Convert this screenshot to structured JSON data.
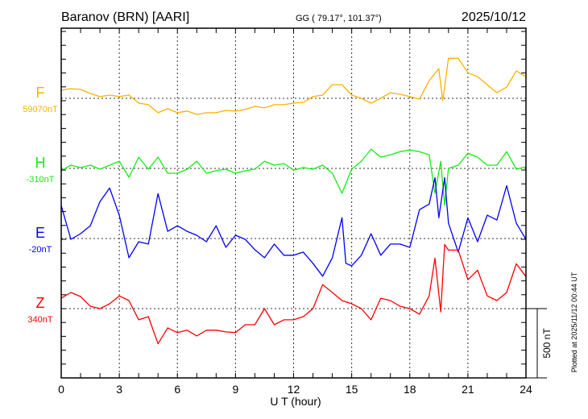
{
  "header": {
    "station": "Baranov (BRN)  [AARI]",
    "coords": "GG ( 79.17°, 101.37°)",
    "date": "2025/10/12"
  },
  "footer": {
    "plotted": "Plotted at 2025/11/12 00:44 UT"
  },
  "scale_bar": {
    "label": "500 nT",
    "value_nT": 500
  },
  "chart_data": {
    "type": "line",
    "title": "Baranov (BRN) [AARI] 2025/10/12",
    "xlabel": "U T (hour)",
    "xlim": [
      0,
      24
    ],
    "xticks": [
      "0",
      "3",
      "6",
      "9",
      "12",
      "15",
      "18",
      "21",
      "24"
    ],
    "xtick_values": [
      0,
      3,
      6,
      9,
      12,
      15,
      18,
      21,
      24
    ],
    "grid": "dotted vertical lines every 3 hours; dotted baseline per component",
    "units_per_tick_nT": 100,
    "series": [
      {
        "name": "F",
        "baseline_label": "59070nT",
        "color": "#ffb000",
        "x": [
          0,
          0.5,
          1,
          1.5,
          2,
          2.5,
          3,
          3.5,
          4,
          4.5,
          5,
          5.5,
          6,
          6.5,
          7,
          7.5,
          8,
          8.5,
          9,
          9.5,
          10,
          10.5,
          11,
          11.5,
          12,
          12.5,
          13,
          13.5,
          14,
          14.5,
          15,
          15.5,
          16,
          16.5,
          17,
          17.5,
          18,
          18.5,
          19,
          19.5,
          19.7,
          20,
          20.5,
          21,
          21.5,
          22,
          22.5,
          23,
          23.5,
          24
        ],
        "values": [
          58,
          70,
          64,
          35,
          12,
          23,
          12,
          23,
          -35,
          -46,
          -104,
          -75,
          -104,
          -92,
          -116,
          -104,
          -104,
          -87,
          -92,
          -81,
          -58,
          -69,
          -46,
          -46,
          -35,
          -29,
          12,
          23,
          98,
          98,
          23,
          0,
          -35,
          0,
          40,
          29,
          12,
          -6,
          127,
          214,
          -17,
          289,
          289,
          185,
          156,
          98,
          40,
          81,
          197,
          156
        ]
      },
      {
        "name": "H",
        "baseline_label": "-310nT",
        "color": "#11ee11",
        "x": [
          0,
          0.5,
          1,
          1.5,
          2,
          2.5,
          3,
          3.5,
          4,
          4.5,
          5,
          5.5,
          6,
          6.5,
          7,
          7.5,
          8,
          8.5,
          9,
          9.5,
          10,
          10.5,
          11,
          11.5,
          12,
          12.5,
          13,
          13.5,
          14,
          14.5,
          15,
          15.5,
          16,
          16.5,
          17,
          17.5,
          18,
          18.5,
          19,
          19.3,
          19.6,
          19.8,
          20,
          20.5,
          21,
          21.5,
          22,
          22.5,
          23,
          23.5,
          24
        ],
        "values": [
          -17,
          23,
          6,
          23,
          -6,
          23,
          52,
          -64,
          81,
          -6,
          81,
          -35,
          -35,
          -6,
          52,
          -35,
          -17,
          -6,
          -35,
          -17,
          -6,
          52,
          23,
          35,
          -12,
          6,
          -6,
          23,
          -35,
          -179,
          -6,
          52,
          139,
          81,
          98,
          121,
          133,
          121,
          98,
          -179,
          52,
          -266,
          0,
          23,
          110,
          81,
          23,
          23,
          121,
          -6,
          12
        ]
      },
      {
        "name": "E",
        "baseline_label": "-20nT",
        "color": "#0000ff",
        "x": [
          0,
          0.5,
          1,
          1.5,
          2,
          2.5,
          3,
          3.5,
          4,
          4.5,
          5,
          5.5,
          6,
          6.5,
          7,
          7.5,
          8,
          8.5,
          9,
          9.5,
          10,
          10.5,
          11,
          11.5,
          12,
          12.5,
          13,
          13.5,
          14,
          14.5,
          14.7,
          15,
          15.5,
          16,
          16.5,
          17,
          17.5,
          18,
          18.5,
          19,
          19.3,
          19.5,
          19.8,
          20,
          20.5,
          21,
          21.5,
          22,
          22.5,
          23,
          23.5,
          24
        ],
        "values": [
          237,
          -6,
          35,
          92,
          266,
          364,
          168,
          -139,
          -23,
          -40,
          324,
          52,
          92,
          52,
          23,
          -23,
          92,
          -64,
          23,
          -6,
          -81,
          -139,
          -40,
          -121,
          -121,
          -98,
          -179,
          -272,
          -139,
          150,
          -179,
          -197,
          -121,
          35,
          -121,
          -40,
          -40,
          -64,
          208,
          248,
          439,
          150,
          439,
          110,
          -98,
          150,
          -23,
          168,
          133,
          381,
          110,
          -6
        ]
      },
      {
        "name": "Z",
        "baseline_label": "340nT",
        "color": "#ff0000",
        "x": [
          0,
          0.5,
          1,
          1.5,
          2,
          2.5,
          3,
          3.5,
          4,
          4.5,
          5,
          5.5,
          6,
          6.5,
          7,
          7.5,
          8,
          8.5,
          9,
          9.5,
          10,
          10.5,
          11,
          11.5,
          12,
          12.5,
          13,
          13.5,
          14,
          14.5,
          15,
          15.5,
          16,
          16.5,
          17,
          17.5,
          18,
          18.5,
          19,
          19.3,
          19.6,
          19.8,
          20,
          20.5,
          21,
          21.5,
          22,
          22.5,
          23,
          23.5,
          24
        ],
        "values": [
          75,
          116,
          87,
          17,
          0,
          35,
          92,
          58,
          -81,
          -58,
          -254,
          -139,
          -173,
          -156,
          -197,
          -156,
          -156,
          -168,
          -173,
          -116,
          -116,
          0,
          -116,
          -81,
          -81,
          -58,
          0,
          173,
          116,
          58,
          35,
          0,
          -81,
          75,
          58,
          17,
          0,
          -40,
          92,
          364,
          -23,
          462,
          422,
          422,
          208,
          277,
          92,
          58,
          116,
          324,
          231
        ]
      }
    ]
  }
}
